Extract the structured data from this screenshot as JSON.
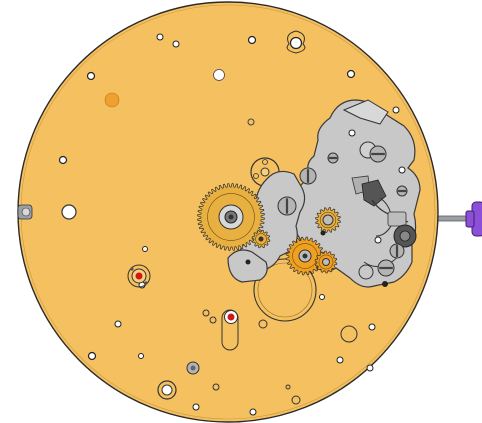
{
  "diagram": {
    "colors": {
      "plate_fill": "#f5c060",
      "plate_stroke": "#2b2b2b",
      "bridge_fill": "#c8c8c8",
      "bridge_stroke": "#3a3a3a",
      "gear_gold": "#e8b040",
      "gear_orange": "#f0a020",
      "jewel_red": "#d01818",
      "hole_fill": "#ffffff",
      "orange_spot": "#f0a030",
      "crown_purple": "#8c4fd8",
      "stem_grey": "#9aa0a6",
      "screw_grey": "#b4b4b4"
    },
    "components": [
      "main-plate",
      "keyless-bridge",
      "winding-stem",
      "crown",
      "gear-train",
      "jewels",
      "screws",
      "pillar-holes"
    ]
  }
}
